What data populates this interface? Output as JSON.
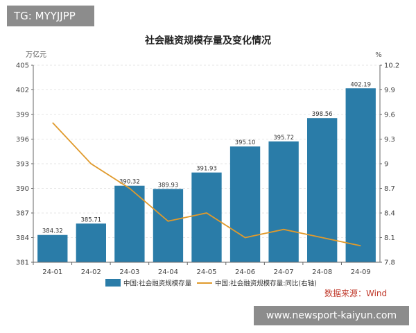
{
  "watermark_top": "TG: MYYJJPP",
  "watermark_bottom": "www.newsport-kaiyun.com",
  "source": "数据来源：Wind",
  "colors": {
    "bar": "#2a7ca8",
    "line": "#e09a2c",
    "grid": "#e6e6e6",
    "axis": "#666666"
  },
  "chart_data": {
    "type": "bar",
    "title": "社会融资规模存量及变化情况",
    "categories": [
      "24-01",
      "24-02",
      "24-03",
      "24-04",
      "24-05",
      "24-06",
      "24-07",
      "24-08",
      "24-09"
    ],
    "left_unit": "万亿元",
    "right_unit": "%",
    "left_ticks": [
      "381",
      "384",
      "387",
      "390",
      "393",
      "396",
      "399",
      "402",
      "405"
    ],
    "right_ticks": [
      "7.8",
      "8.1",
      "8.4",
      "8.7",
      "9",
      "9.3",
      "9.6",
      "9.9",
      "10.2"
    ],
    "ylim_left": [
      381,
      405
    ],
    "ylim_right": [
      7.8,
      10.2
    ],
    "grid": true,
    "legend_position": "bottom",
    "series": [
      {
        "name": "中国:社会融资规模存量",
        "axis": "left",
        "type": "bar",
        "values": [
          384.32,
          385.71,
          390.32,
          389.93,
          391.93,
          395.1,
          395.72,
          398.56,
          402.19
        ],
        "labels": [
          "384.32",
          "385.71",
          "390.32",
          "389.93",
          "391.93",
          "395.10",
          "395.72",
          "398.56",
          "402.19"
        ]
      },
      {
        "name": "中国:社会融资规模存量:同比(右轴)",
        "axis": "right",
        "type": "line",
        "values": [
          9.5,
          9.0,
          8.7,
          8.3,
          8.4,
          8.1,
          8.2,
          8.1,
          8.0
        ]
      }
    ]
  }
}
